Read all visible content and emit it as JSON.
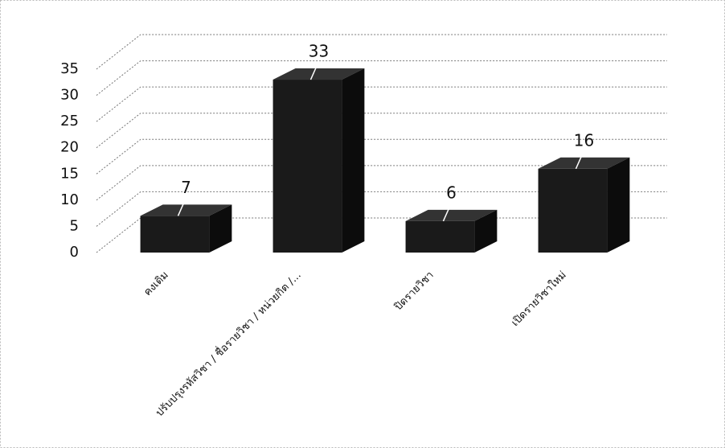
{
  "chart_data": {
    "type": "bar3d",
    "categories": [
      "คงเดิม",
      "ปรับปรุงรหัสวิชา / ชื่อรายวิชา / หน่วยกิต /...",
      "ปิดรายวิชา",
      "เปิดรายวิชาใหม่"
    ],
    "values": [
      7,
      33,
      6,
      16
    ],
    "color": "#1a1a1a",
    "ylim": [
      0,
      35
    ],
    "yticks": [
      0,
      5,
      10,
      15,
      20,
      25,
      30,
      35
    ],
    "grid": true
  }
}
